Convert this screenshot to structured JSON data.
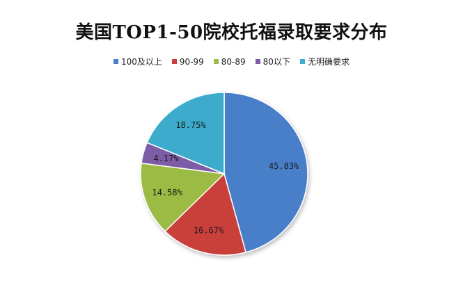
{
  "chart_data": {
    "type": "pie",
    "title": "美国TOP1-50院校托福录取要求分布",
    "categories": [
      "100及以上",
      "90-99",
      "80-89",
      "80以下",
      "无明确要求"
    ],
    "values": [
      45.83,
      16.67,
      14.58,
      4.17,
      18.75
    ],
    "value_labels": [
      "45.83%",
      "16.67%",
      "14.58%",
      "4.17%",
      "18.75%"
    ],
    "colors": [
      "#4a7ec8",
      "#c9403a",
      "#9bbb44",
      "#7d5ca6",
      "#3eaccc"
    ],
    "legend_position": "top"
  }
}
